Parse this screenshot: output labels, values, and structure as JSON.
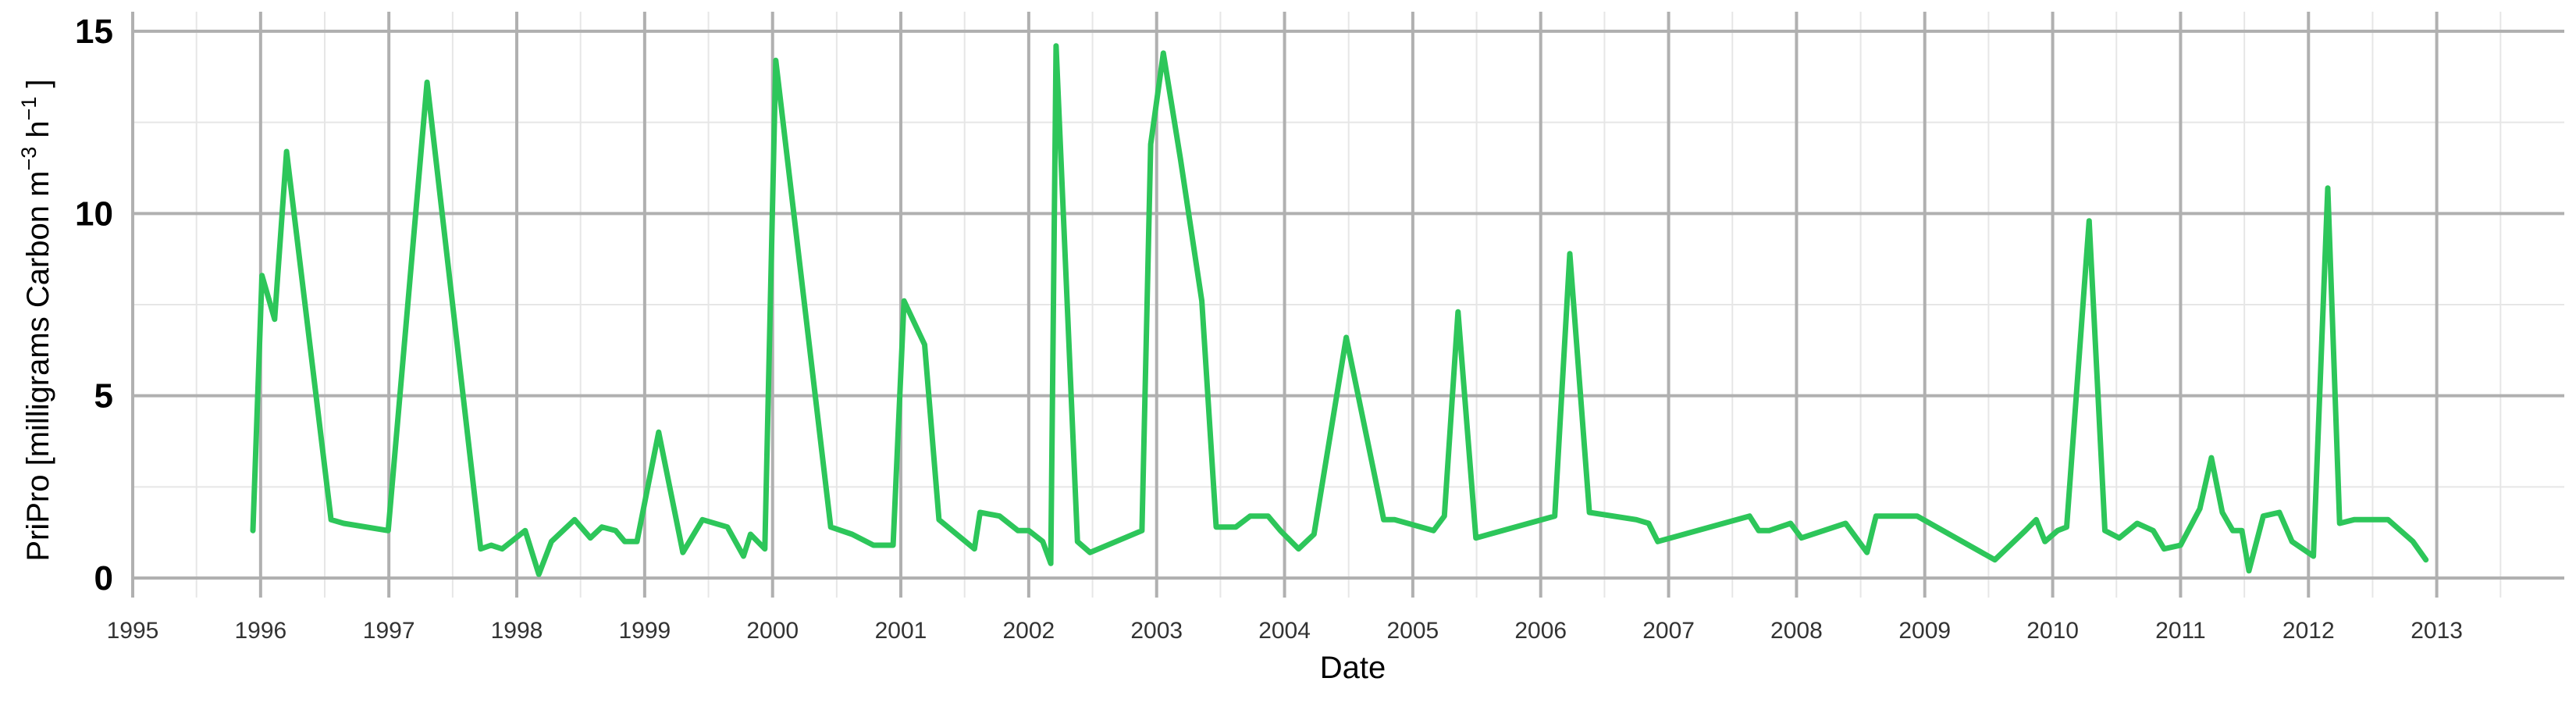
{
  "chart_data": {
    "type": "line",
    "xlabel": "Date",
    "ylabel": {
      "main": "PriPro [milligrams Carbon m",
      "sup1": "−3",
      "mid": " h",
      "sup2": "−1",
      "end": " ]"
    },
    "xlim": [
      "1995-01-01",
      "2013-12-31"
    ],
    "ylim": [
      0,
      15
    ],
    "x_ticks": [
      "1995",
      "1996",
      "1997",
      "1998",
      "1999",
      "2000",
      "2001",
      "2002",
      "2003",
      "2004",
      "2005",
      "2006",
      "2007",
      "2008",
      "2009",
      "2010",
      "2011",
      "2012",
      "2013"
    ],
    "y_ticks": [
      "0",
      "5",
      "10",
      "15"
    ],
    "grid": true,
    "line_color": "#2dc65a",
    "series": [
      {
        "x": [
          "1995-12-10",
          "1996-01-05",
          "1996-02-10",
          "1996-03-15",
          "1996-07-20",
          "1996-08-25",
          "1996-12-30",
          "1997-04-20",
          "1997-09-20",
          "1997-10-20",
          "1997-11-20",
          "1998-01-25",
          "1998-03-05",
          "1998-04-10",
          "1998-06-15",
          "1998-07-30",
          "1998-09-01",
          "1998-10-10",
          "1998-11-05",
          "1998-12-10",
          "1999-02-10",
          "1999-04-20",
          "1999-06-15",
          "1999-08-25",
          "1999-10-10",
          "1999-10-30",
          "1999-12-10",
          "2000-01-10",
          "2000-06-15",
          "2000-08-15",
          "2000-10-15",
          "2000-12-10",
          "2001-01-10",
          "2001-03-10",
          "2001-04-20",
          "2001-07-30",
          "2001-08-15",
          "2001-10-10",
          "2001-12-01",
          "2002-01-01",
          "2002-02-10",
          "2002-03-05",
          "2002-03-20",
          "2002-05-20",
          "2002-06-25",
          "2002-11-20",
          "2002-12-15",
          "2003-01-20",
          "2003-03-10",
          "2003-05-10",
          "2003-06-20",
          "2003-08-15",
          "2003-09-25",
          "2003-11-15",
          "2003-12-20",
          "2004-02-10",
          "2004-03-25",
          "2004-06-25",
          "2004-10-10",
          "2004-11-10",
          "2005-03-01",
          "2005-04-01",
          "2005-05-10",
          "2005-06-30",
          "2006-02-10",
          "2006-03-25",
          "2006-05-20",
          "2006-10-01",
          "2006-11-05",
          "2006-12-01",
          "2007-08-20",
          "2007-09-15",
          "2007-10-15",
          "2007-12-15",
          "2008-01-15",
          "2008-05-20",
          "2008-07-20",
          "2008-08-15",
          "2008-12-10",
          "2009-07-20",
          "2009-10-15",
          "2009-11-15",
          "2009-12-10",
          "2010-01-15",
          "2010-02-10",
          "2010-04-15",
          "2010-05-30",
          "2010-07-10",
          "2010-08-30",
          "2010-10-15",
          "2010-11-15",
          "2011-01-01",
          "2011-02-25",
          "2011-03-30",
          "2011-04-30",
          "2011-05-30",
          "2011-06-25",
          "2011-07-15",
          "2011-08-25",
          "2011-10-10",
          "2011-11-15",
          "2012-01-15",
          "2012-02-25",
          "2012-03-30",
          "2012-05-10",
          "2012-08-15",
          "2012-10-25",
          "2012-12-01"
        ],
        "values": [
          1.3,
          8.3,
          7.1,
          11.7,
          1.6,
          1.5,
          1.3,
          13.6,
          0.8,
          0.9,
          0.8,
          1.3,
          0.1,
          1.0,
          1.6,
          1.1,
          1.4,
          1.3,
          1.0,
          1.0,
          4.0,
          0.7,
          1.6,
          1.4,
          0.6,
          1.2,
          0.8,
          14.2,
          1.4,
          1.2,
          0.9,
          0.9,
          7.6,
          6.4,
          1.6,
          0.8,
          1.8,
          1.7,
          1.3,
          1.3,
          1.0,
          0.4,
          14.6,
          1.0,
          0.7,
          1.3,
          11.9,
          14.4,
          11.5,
          7.6,
          1.4,
          1.4,
          1.7,
          1.7,
          1.3,
          0.8,
          1.2,
          6.6,
          1.6,
          1.6,
          1.3,
          1.7,
          7.3,
          1.1,
          1.7,
          8.9,
          1.8,
          1.6,
          1.5,
          1.0,
          1.7,
          1.3,
          1.3,
          1.5,
          1.1,
          1.5,
          0.7,
          1.7,
          1.7,
          0.5,
          1.3,
          1.6,
          1.0,
          1.3,
          1.4,
          9.8,
          1.3,
          1.1,
          1.5,
          1.3,
          0.8,
          0.9,
          1.9,
          3.3,
          1.8,
          1.3,
          1.3,
          0.2,
          1.7,
          1.8,
          1.0,
          0.6,
          10.7,
          1.5,
          1.6,
          1.6,
          1.0,
          0.5
        ]
      }
    ]
  }
}
